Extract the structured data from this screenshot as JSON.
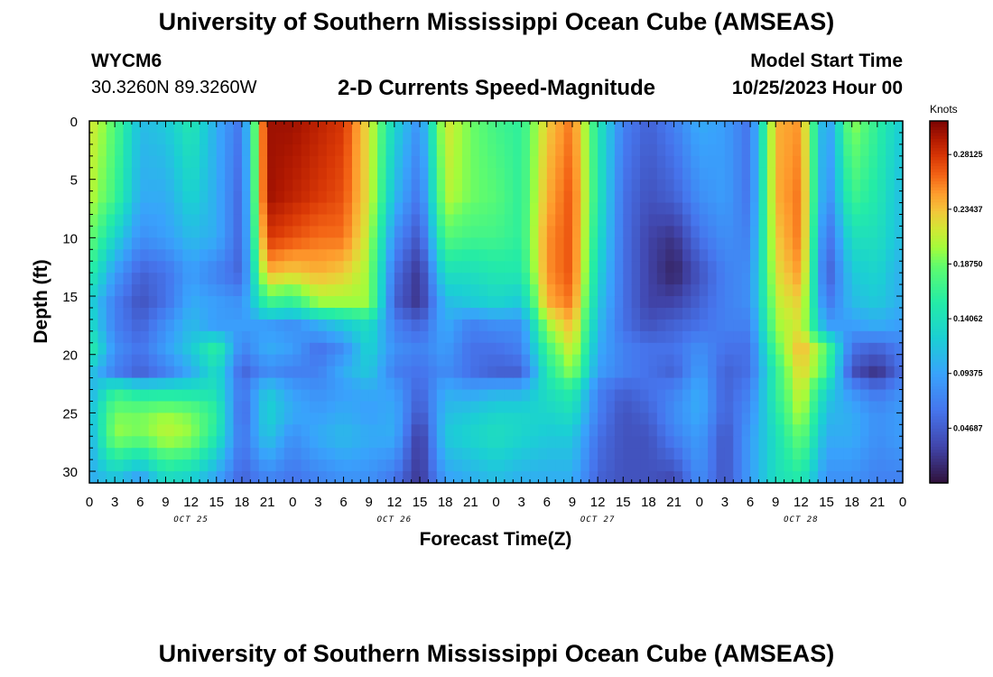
{
  "header": {
    "title": "University of Southern Mississippi Ocean Cube (AMSEAS)",
    "station": "WYCM6",
    "coords": "30.3260N  89.3260W",
    "subtitle": "2-D Currents Speed-Magnitude",
    "model_start_label": "Model Start Time",
    "model_start_value": "10/25/2023 Hour 00"
  },
  "footer": {
    "title": "University of Southern Mississippi Ocean Cube (AMSEAS)"
  },
  "chart_data": {
    "type": "heatmap",
    "title": "2-D Currents Speed-Magnitude",
    "xlabel": "Forecast Time(Z)",
    "ylabel": "Depth (ft)",
    "x_tick_labels": [
      "0",
      "3",
      "6",
      "9",
      "12",
      "15",
      "18",
      "21",
      "0",
      "3",
      "6",
      "9",
      "12",
      "15",
      "18",
      "21",
      "0",
      "3",
      "6",
      "9",
      "12",
      "15",
      "18",
      "21",
      "0",
      "3",
      "6",
      "9",
      "12",
      "15",
      "18",
      "21",
      "0"
    ],
    "day_labels": [
      {
        "label": "OCT 25",
        "hour": 12
      },
      {
        "label": "OCT 26",
        "hour": 36
      },
      {
        "label": "OCT 27",
        "hour": 60
      },
      {
        "label": "OCT 28",
        "hour": 84
      }
    ],
    "xlim_hours": [
      0,
      96
    ],
    "y_ticks": [
      0,
      5,
      10,
      15,
      20,
      25,
      30
    ],
    "ylim_depth_ft": [
      0,
      31
    ],
    "colorbar": {
      "label": "Knots",
      "ticks": [
        "0.28125",
        "0.23437",
        "0.18750",
        "0.14062",
        "0.09375",
        "0.04687"
      ],
      "range": [
        0,
        0.31
      ],
      "colormap": "turbo"
    },
    "depth_levels_ft": [
      0,
      6.4,
      10,
      13,
      15.5,
      17.5,
      19.5,
      21.5,
      23,
      25,
      27,
      31
    ],
    "column_hours": [
      0,
      3,
      6,
      9,
      12,
      15,
      18,
      21,
      24,
      27,
      30,
      33,
      36,
      39,
      42,
      45,
      48,
      51,
      54,
      57,
      60,
      63,
      66,
      69,
      72,
      75,
      78,
      81,
      84,
      87,
      90,
      93,
      96
    ],
    "speed_knots": [
      [
        0.22,
        0.21,
        0.19,
        0.16,
        0.13,
        0.14,
        0.16,
        0.12,
        0.1,
        0.11,
        0.1,
        0.1
      ],
      [
        0.18,
        0.17,
        0.13,
        0.09,
        0.07,
        0.07,
        0.08,
        0.07,
        0.16,
        0.19,
        0.2,
        0.11
      ],
      [
        0.11,
        0.1,
        0.08,
        0.05,
        0.04,
        0.05,
        0.06,
        0.05,
        0.14,
        0.19,
        0.19,
        0.08
      ],
      [
        0.12,
        0.1,
        0.09,
        0.06,
        0.06,
        0.08,
        0.09,
        0.07,
        0.14,
        0.2,
        0.21,
        0.13
      ],
      [
        0.15,
        0.13,
        0.11,
        0.09,
        0.1,
        0.11,
        0.12,
        0.1,
        0.14,
        0.19,
        0.2,
        0.12
      ],
      [
        0.1,
        0.1,
        0.1,
        0.07,
        0.09,
        0.09,
        0.16,
        0.14,
        0.14,
        0.16,
        0.15,
        0.09
      ],
      [
        0.06,
        0.05,
        0.05,
        0.05,
        0.08,
        0.09,
        0.07,
        0.05,
        0.06,
        0.05,
        0.06,
        0.05
      ],
      [
        0.3,
        0.3,
        0.28,
        0.24,
        0.17,
        0.09,
        0.1,
        0.08,
        0.12,
        0.13,
        0.12,
        0.07
      ],
      [
        0.3,
        0.29,
        0.27,
        0.23,
        0.16,
        0.08,
        0.09,
        0.07,
        0.09,
        0.1,
        0.08,
        0.06
      ],
      [
        0.29,
        0.28,
        0.26,
        0.24,
        0.2,
        0.1,
        0.06,
        0.07,
        0.08,
        0.09,
        0.1,
        0.07
      ],
      [
        0.28,
        0.27,
        0.26,
        0.23,
        0.2,
        0.12,
        0.08,
        0.1,
        0.09,
        0.1,
        0.11,
        0.08
      ],
      [
        0.22,
        0.22,
        0.21,
        0.2,
        0.2,
        0.14,
        0.13,
        0.12,
        0.1,
        0.09,
        0.1,
        0.08
      ],
      [
        0.13,
        0.11,
        0.08,
        0.06,
        0.05,
        0.07,
        0.08,
        0.07,
        0.09,
        0.1,
        0.1,
        0.06
      ],
      [
        0.08,
        0.06,
        0.04,
        0.02,
        0.02,
        0.05,
        0.07,
        0.06,
        0.05,
        0.04,
        0.02,
        0.02
      ],
      [
        0.22,
        0.21,
        0.18,
        0.14,
        0.11,
        0.1,
        0.09,
        0.08,
        0.1,
        0.11,
        0.12,
        0.09
      ],
      [
        0.19,
        0.19,
        0.17,
        0.14,
        0.12,
        0.07,
        0.06,
        0.06,
        0.09,
        0.12,
        0.13,
        0.1
      ],
      [
        0.17,
        0.18,
        0.17,
        0.15,
        0.13,
        0.08,
        0.06,
        0.05,
        0.1,
        0.13,
        0.14,
        0.11
      ],
      [
        0.16,
        0.16,
        0.16,
        0.15,
        0.12,
        0.08,
        0.07,
        0.05,
        0.1,
        0.13,
        0.13,
        0.1
      ],
      [
        0.23,
        0.24,
        0.25,
        0.25,
        0.24,
        0.2,
        0.17,
        0.15,
        0.14,
        0.13,
        0.12,
        0.1
      ],
      [
        0.26,
        0.27,
        0.27,
        0.27,
        0.26,
        0.24,
        0.22,
        0.2,
        0.16,
        0.14,
        0.12,
        0.1
      ],
      [
        0.15,
        0.15,
        0.14,
        0.13,
        0.12,
        0.11,
        0.1,
        0.09,
        0.07,
        0.07,
        0.06,
        0.05
      ],
      [
        0.07,
        0.06,
        0.06,
        0.06,
        0.06,
        0.06,
        0.07,
        0.07,
        0.05,
        0.04,
        0.04,
        0.04
      ],
      [
        0.05,
        0.04,
        0.03,
        0.03,
        0.03,
        0.04,
        0.06,
        0.06,
        0.06,
        0.05,
        0.04,
        0.04
      ],
      [
        0.07,
        0.05,
        0.02,
        0.01,
        0.03,
        0.05,
        0.06,
        0.05,
        0.07,
        0.08,
        0.07,
        0.03
      ],
      [
        0.1,
        0.08,
        0.06,
        0.04,
        0.05,
        0.06,
        0.08,
        0.09,
        0.1,
        0.1,
        0.09,
        0.08
      ],
      [
        0.09,
        0.09,
        0.08,
        0.07,
        0.07,
        0.07,
        0.06,
        0.05,
        0.05,
        0.05,
        0.04,
        0.04
      ],
      [
        0.06,
        0.06,
        0.07,
        0.08,
        0.08,
        0.07,
        0.06,
        0.06,
        0.07,
        0.08,
        0.09,
        0.09
      ],
      [
        0.24,
        0.24,
        0.23,
        0.22,
        0.21,
        0.2,
        0.18,
        0.16,
        0.16,
        0.15,
        0.14,
        0.14
      ],
      [
        0.25,
        0.26,
        0.26,
        0.25,
        0.23,
        0.22,
        0.24,
        0.23,
        0.22,
        0.21,
        0.19,
        0.15
      ],
      [
        0.08,
        0.07,
        0.05,
        0.04,
        0.06,
        0.09,
        0.18,
        0.17,
        0.13,
        0.11,
        0.1,
        0.08
      ],
      [
        0.2,
        0.17,
        0.14,
        0.12,
        0.11,
        0.09,
        0.06,
        0.04,
        0.08,
        0.1,
        0.1,
        0.08
      ],
      [
        0.16,
        0.15,
        0.14,
        0.13,
        0.12,
        0.1,
        0.05,
        0.02,
        0.06,
        0.08,
        0.08,
        0.07
      ],
      [
        0.12,
        0.11,
        0.11,
        0.1,
        0.1,
        0.09,
        0.07,
        0.06,
        0.08,
        0.09,
        0.09,
        0.07
      ]
    ]
  }
}
